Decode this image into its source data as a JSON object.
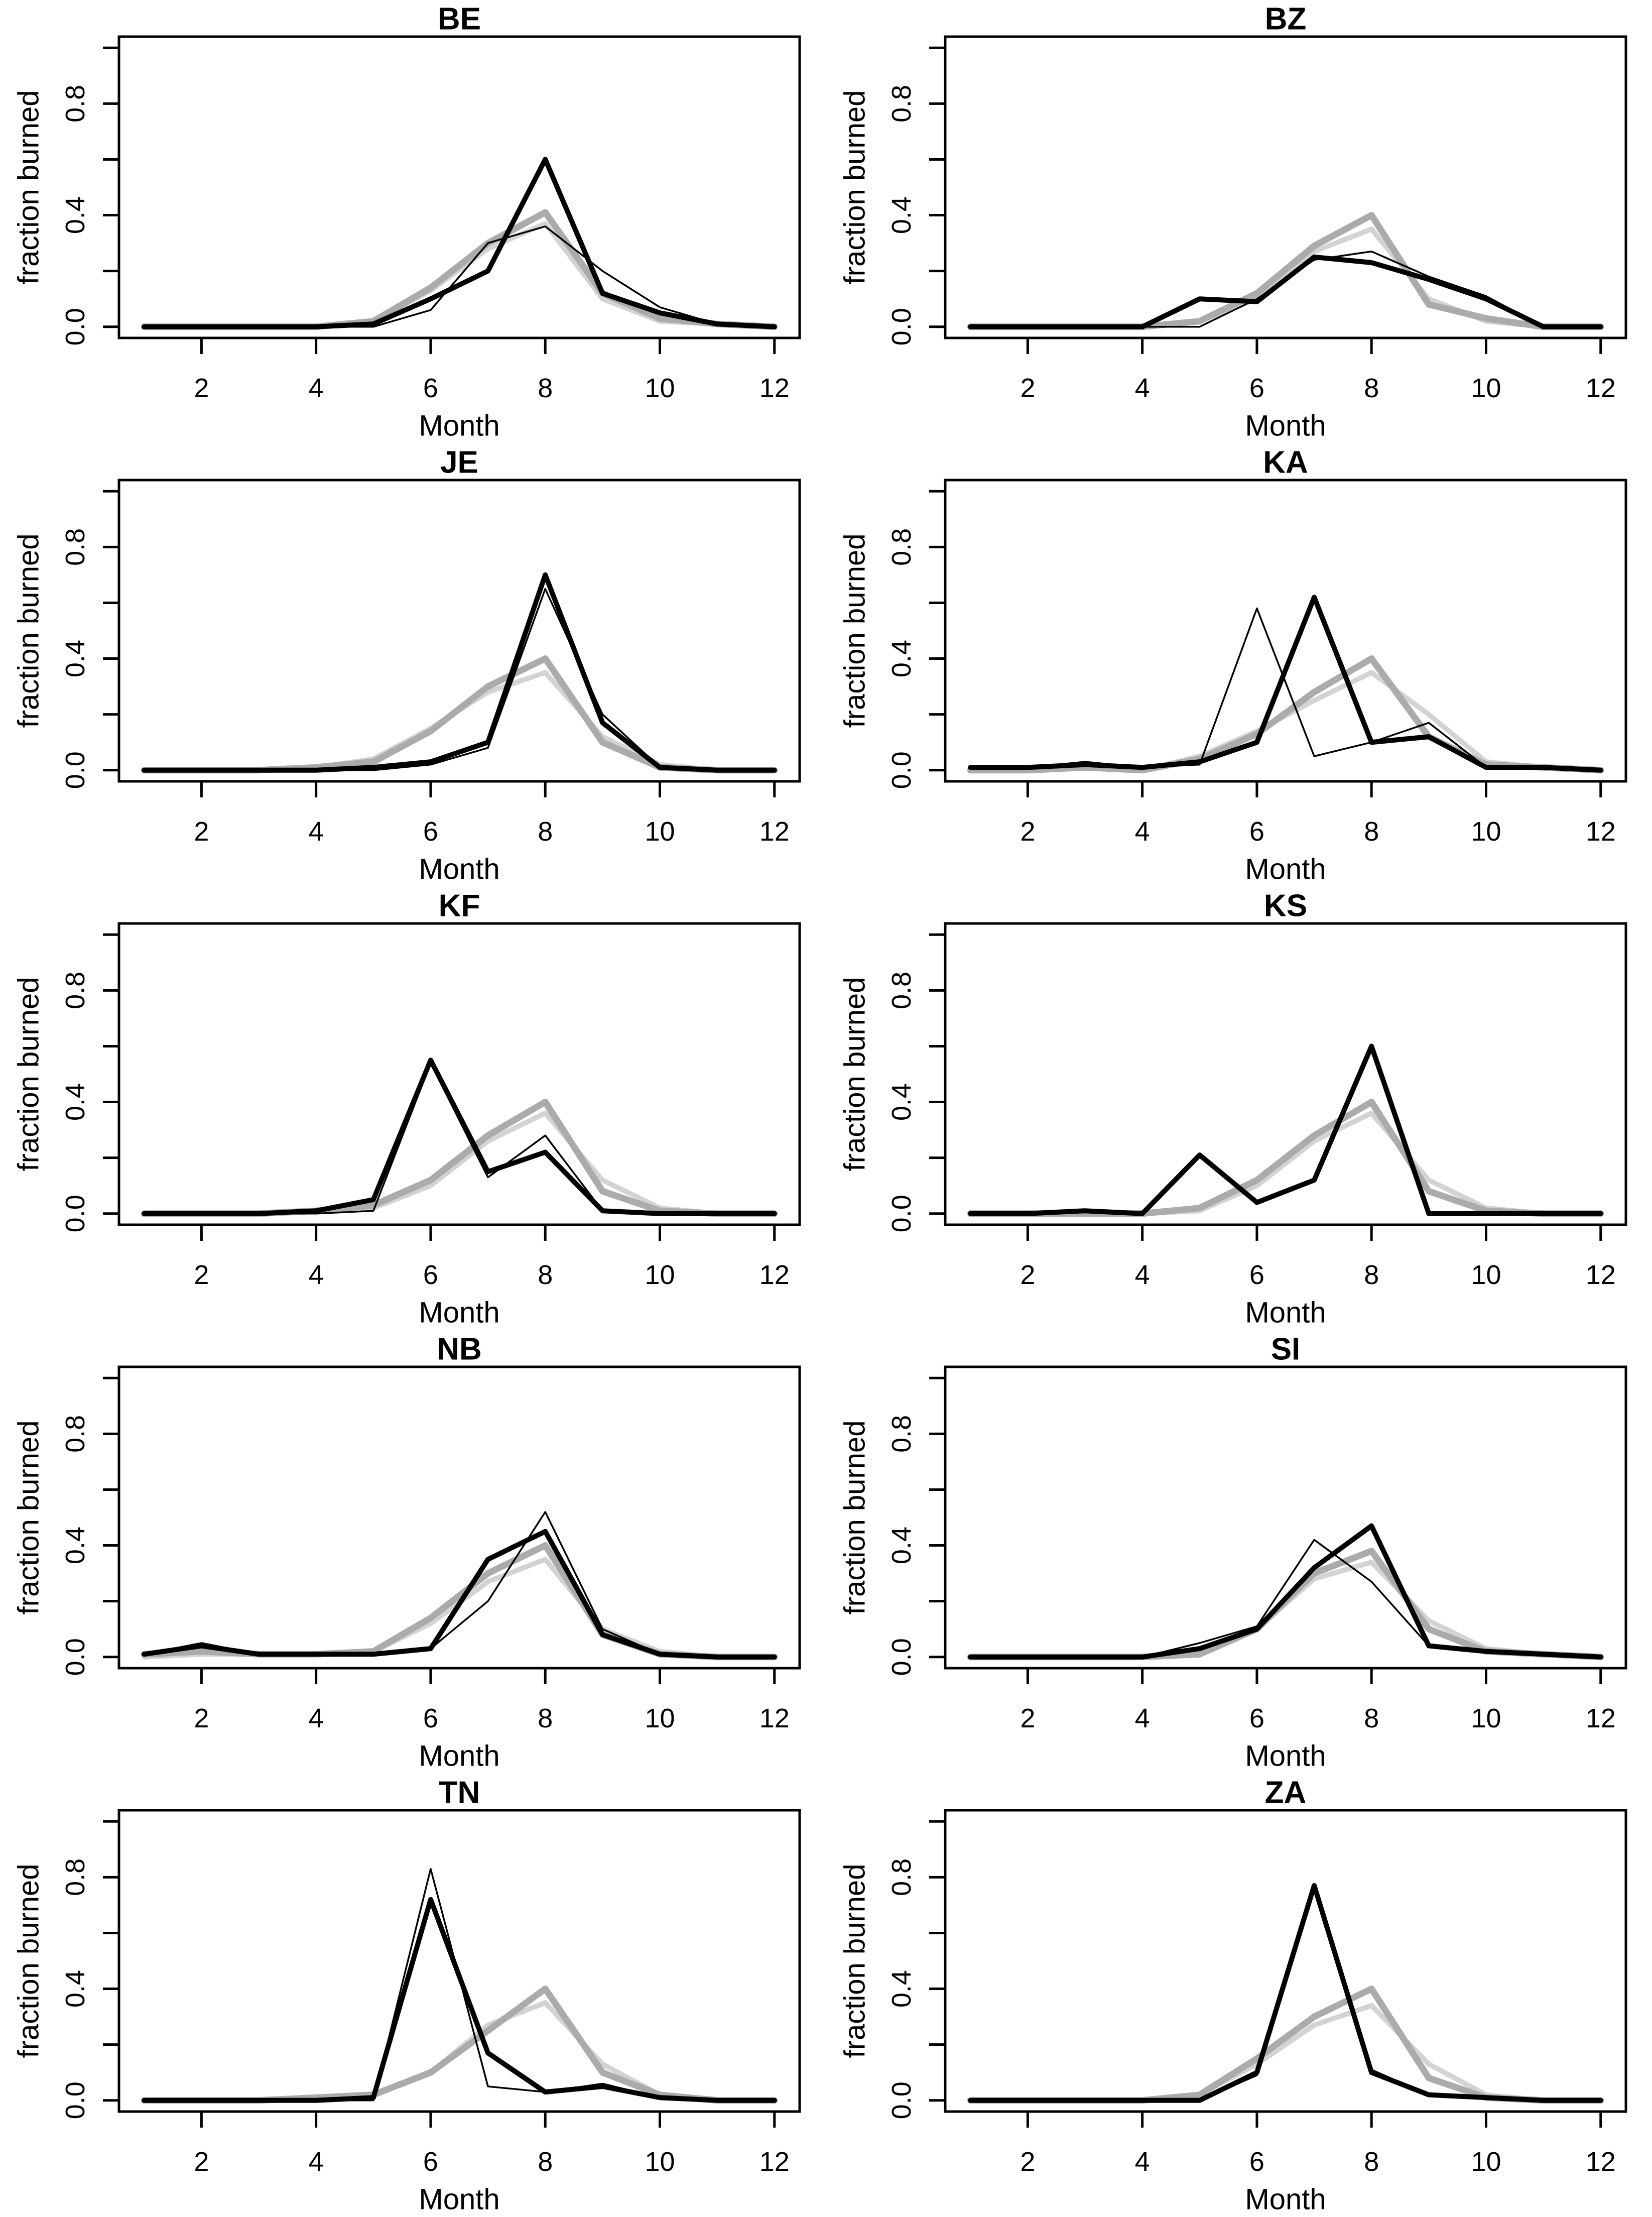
{
  "figure": {
    "xlabel": "Month",
    "ylabel": "fraction burned",
    "months": [
      1,
      2,
      3,
      4,
      5,
      6,
      7,
      8,
      9,
      10,
      11,
      12
    ],
    "xlim": [
      1,
      12
    ],
    "ylim": [
      0,
      1
    ],
    "xticks": [
      2,
      4,
      6,
      8,
      10,
      12
    ],
    "xtick_labels": [
      "2",
      "4",
      "6",
      "8",
      "10",
      "12"
    ],
    "yticks": [
      0,
      0.2,
      0.4,
      0.6,
      0.8,
      1.0
    ],
    "ytick_labeled_values": [
      0,
      0.4,
      0.8
    ],
    "ytick_labels": [
      "0.0",
      "0.4",
      "0.8"
    ],
    "grid": "off",
    "legend": "none"
  },
  "colors": {
    "background": "#ffffff",
    "text": "#000000",
    "line_black": "#000000",
    "line_dark_gray": "#ababab",
    "line_light_gray": "#d3d3d3"
  },
  "chart_data": [
    {
      "title": "BE",
      "type": "line",
      "series": [
        {
          "name": "light-gray-line",
          "style": "light-gray",
          "values": [
            0,
            0,
            0,
            0,
            0.02,
            0.13,
            0.28,
            0.37,
            0.1,
            0.02,
            0.01,
            0
          ]
        },
        {
          "name": "dark-gray-line",
          "style": "dark-gray",
          "values": [
            0,
            0,
            0,
            0,
            0.02,
            0.14,
            0.3,
            0.41,
            0.12,
            0.03,
            0.01,
            0
          ]
        },
        {
          "name": "thin-black-line",
          "style": "black-thin",
          "values": [
            0,
            0,
            0,
            0,
            0,
            0.06,
            0.3,
            0.36,
            0.2,
            0.07,
            0.01,
            0
          ]
        },
        {
          "name": "thick-black-line",
          "style": "black-thick",
          "values": [
            0,
            0,
            0,
            0,
            0.01,
            0.1,
            0.2,
            0.6,
            0.12,
            0.05,
            0.01,
            0
          ]
        }
      ]
    },
    {
      "title": "BZ",
      "type": "line",
      "series": [
        {
          "name": "light-gray-line",
          "style": "light-gray",
          "values": [
            0,
            0,
            0,
            0,
            0.02,
            0.1,
            0.27,
            0.35,
            0.1,
            0.02,
            0,
            0
          ]
        },
        {
          "name": "dark-gray-line",
          "style": "dark-gray",
          "values": [
            0,
            0,
            0,
            0,
            0.02,
            0.12,
            0.29,
            0.4,
            0.08,
            0.03,
            0,
            0
          ]
        },
        {
          "name": "thin-black-line",
          "style": "black-thin",
          "values": [
            0,
            0,
            0,
            0,
            0,
            0.1,
            0.24,
            0.27,
            0.18,
            0.11,
            0,
            0
          ]
        },
        {
          "name": "thick-black-line",
          "style": "black-thick",
          "values": [
            0,
            0,
            0,
            0,
            0.1,
            0.09,
            0.25,
            0.23,
            0.17,
            0.1,
            0,
            0
          ]
        }
      ]
    },
    {
      "title": "JE",
      "type": "line",
      "series": [
        {
          "name": "light-gray-line",
          "style": "light-gray",
          "values": [
            0,
            0,
            0,
            0.01,
            0.04,
            0.15,
            0.28,
            0.35,
            0.12,
            0.02,
            0,
            0
          ]
        },
        {
          "name": "dark-gray-line",
          "style": "dark-gray",
          "values": [
            0,
            0,
            0,
            0.01,
            0.03,
            0.14,
            0.3,
            0.4,
            0.1,
            0.01,
            0,
            0
          ]
        },
        {
          "name": "thin-black-line",
          "style": "black-thin",
          "values": [
            0,
            0,
            0,
            0,
            0,
            0.02,
            0.08,
            0.65,
            0.2,
            0.01,
            0,
            0
          ]
        },
        {
          "name": "thick-black-line",
          "style": "black-thick",
          "values": [
            0,
            0,
            0,
            0,
            0.01,
            0.03,
            0.1,
            0.7,
            0.17,
            0.01,
            0,
            0
          ]
        }
      ]
    },
    {
      "title": "KA",
      "type": "line",
      "series": [
        {
          "name": "light-gray-line",
          "style": "light-gray",
          "values": [
            0,
            0,
            0.01,
            0,
            0.05,
            0.14,
            0.25,
            0.35,
            0.2,
            0.03,
            0.01,
            0
          ]
        },
        {
          "name": "dark-gray-line",
          "style": "dark-gray",
          "values": [
            0,
            0,
            0.01,
            0,
            0.04,
            0.13,
            0.28,
            0.4,
            0.12,
            0.02,
            0.01,
            0
          ]
        },
        {
          "name": "thin-black-line",
          "style": "black-thin",
          "values": [
            0.01,
            0.01,
            0.03,
            0.01,
            0.02,
            0.58,
            0.05,
            0.1,
            0.17,
            0.01,
            0.01,
            0
          ]
        },
        {
          "name": "thick-black-line",
          "style": "black-thick",
          "values": [
            0.01,
            0.01,
            0.02,
            0.01,
            0.03,
            0.1,
            0.62,
            0.1,
            0.12,
            0.01,
            0.01,
            0
          ]
        }
      ]
    },
    {
      "title": "KF",
      "type": "line",
      "series": [
        {
          "name": "light-gray-line",
          "style": "light-gray",
          "values": [
            0,
            0,
            0,
            0.01,
            0.02,
            0.1,
            0.26,
            0.36,
            0.12,
            0.02,
            0,
            0
          ]
        },
        {
          "name": "dark-gray-line",
          "style": "dark-gray",
          "values": [
            0,
            0,
            0,
            0.01,
            0.03,
            0.12,
            0.28,
            0.4,
            0.08,
            0.01,
            0,
            0
          ]
        },
        {
          "name": "thin-black-line",
          "style": "black-thin",
          "values": [
            0,
            0,
            0,
            0,
            0.01,
            0.54,
            0.13,
            0.28,
            0.01,
            0,
            0,
            0
          ]
        },
        {
          "name": "thick-black-line",
          "style": "black-thick",
          "values": [
            0,
            0,
            0,
            0.01,
            0.05,
            0.55,
            0.15,
            0.22,
            0.01,
            0,
            0,
            0
          ]
        }
      ]
    },
    {
      "title": "KS",
      "type": "line",
      "series": [
        {
          "name": "light-gray-line",
          "style": "light-gray",
          "values": [
            0,
            0,
            0,
            0,
            0.01,
            0.1,
            0.26,
            0.36,
            0.12,
            0.02,
            0,
            0
          ]
        },
        {
          "name": "dark-gray-line",
          "style": "dark-gray",
          "values": [
            0,
            0,
            0,
            0,
            0.02,
            0.12,
            0.28,
            0.4,
            0.08,
            0.01,
            0,
            0
          ]
        },
        {
          "name": "thin-black-line",
          "style": "black-thin",
          "values": [
            0,
            0,
            0.01,
            0,
            0.21,
            0.04,
            0.12,
            0.6,
            0,
            0,
            0,
            0
          ]
        },
        {
          "name": "thick-black-line",
          "style": "black-thick",
          "values": [
            0,
            0,
            0.01,
            0,
            0.21,
            0.04,
            0.12,
            0.6,
            0,
            0,
            0,
            0
          ]
        }
      ]
    },
    {
      "title": "NB",
      "type": "line",
      "series": [
        {
          "name": "light-gray-line",
          "style": "light-gray",
          "values": [
            0,
            0.01,
            0.01,
            0.01,
            0.02,
            0.12,
            0.27,
            0.35,
            0.1,
            0.02,
            0,
            0
          ]
        },
        {
          "name": "dark-gray-line",
          "style": "dark-gray",
          "values": [
            0.01,
            0.02,
            0.01,
            0.01,
            0.02,
            0.14,
            0.3,
            0.4,
            0.08,
            0.01,
            0,
            0
          ]
        },
        {
          "name": "thin-black-line",
          "style": "black-thin",
          "values": [
            0.01,
            0.05,
            0.01,
            0.01,
            0.01,
            0.03,
            0.2,
            0.52,
            0.1,
            0.01,
            0,
            0
          ]
        },
        {
          "name": "thick-black-line",
          "style": "black-thick",
          "values": [
            0.01,
            0.04,
            0.01,
            0.01,
            0.01,
            0.03,
            0.35,
            0.45,
            0.08,
            0.01,
            0,
            0
          ]
        }
      ]
    },
    {
      "title": "SI",
      "type": "line",
      "series": [
        {
          "name": "light-gray-line",
          "style": "light-gray",
          "values": [
            0,
            0,
            0,
            0,
            0.01,
            0.1,
            0.28,
            0.34,
            0.13,
            0.03,
            0.01,
            0
          ]
        },
        {
          "name": "dark-gray-line",
          "style": "dark-gray",
          "values": [
            0,
            0,
            0,
            0,
            0.01,
            0.1,
            0.3,
            0.38,
            0.1,
            0.02,
            0.01,
            0
          ]
        },
        {
          "name": "thin-black-line",
          "style": "black-thin",
          "values": [
            0,
            0,
            0,
            0,
            0.05,
            0.11,
            0.42,
            0.27,
            0.04,
            0.02,
            0.01,
            0
          ]
        },
        {
          "name": "thick-black-line",
          "style": "black-thick",
          "values": [
            0,
            0,
            0,
            0,
            0.03,
            0.1,
            0.32,
            0.47,
            0.04,
            0.02,
            0.01,
            0
          ]
        }
      ]
    },
    {
      "title": "TN",
      "type": "line",
      "series": [
        {
          "name": "light-gray-line",
          "style": "light-gray",
          "values": [
            0,
            0,
            0,
            0.01,
            0.02,
            0.1,
            0.27,
            0.35,
            0.13,
            0.02,
            0,
            0
          ]
        },
        {
          "name": "dark-gray-line",
          "style": "dark-gray",
          "values": [
            0,
            0,
            0,
            0.01,
            0.02,
            0.1,
            0.25,
            0.4,
            0.1,
            0.02,
            0,
            0
          ]
        },
        {
          "name": "thin-black-line",
          "style": "black-thin",
          "values": [
            0,
            0,
            0,
            0,
            0,
            0.83,
            0.05,
            0.03,
            0.06,
            0.01,
            0,
            0
          ]
        },
        {
          "name": "thick-black-line",
          "style": "black-thick",
          "values": [
            0,
            0,
            0,
            0,
            0.01,
            0.72,
            0.17,
            0.03,
            0.05,
            0.01,
            0,
            0
          ]
        }
      ]
    },
    {
      "title": "ZA",
      "type": "line",
      "series": [
        {
          "name": "light-gray-line",
          "style": "light-gray",
          "values": [
            0,
            0,
            0,
            0,
            0.02,
            0.13,
            0.27,
            0.34,
            0.13,
            0.02,
            0,
            0
          ]
        },
        {
          "name": "dark-gray-line",
          "style": "dark-gray",
          "values": [
            0,
            0,
            0,
            0,
            0.02,
            0.15,
            0.3,
            0.4,
            0.08,
            0.01,
            0,
            0
          ]
        },
        {
          "name": "thin-black-line",
          "style": "black-thin",
          "values": [
            0,
            0,
            0,
            0,
            0,
            0.09,
            0.77,
            0.11,
            0.02,
            0.01,
            0,
            0
          ]
        },
        {
          "name": "thick-black-line",
          "style": "black-thick",
          "values": [
            0,
            0,
            0,
            0,
            0,
            0.1,
            0.77,
            0.1,
            0.02,
            0.01,
            0,
            0
          ]
        }
      ]
    }
  ]
}
